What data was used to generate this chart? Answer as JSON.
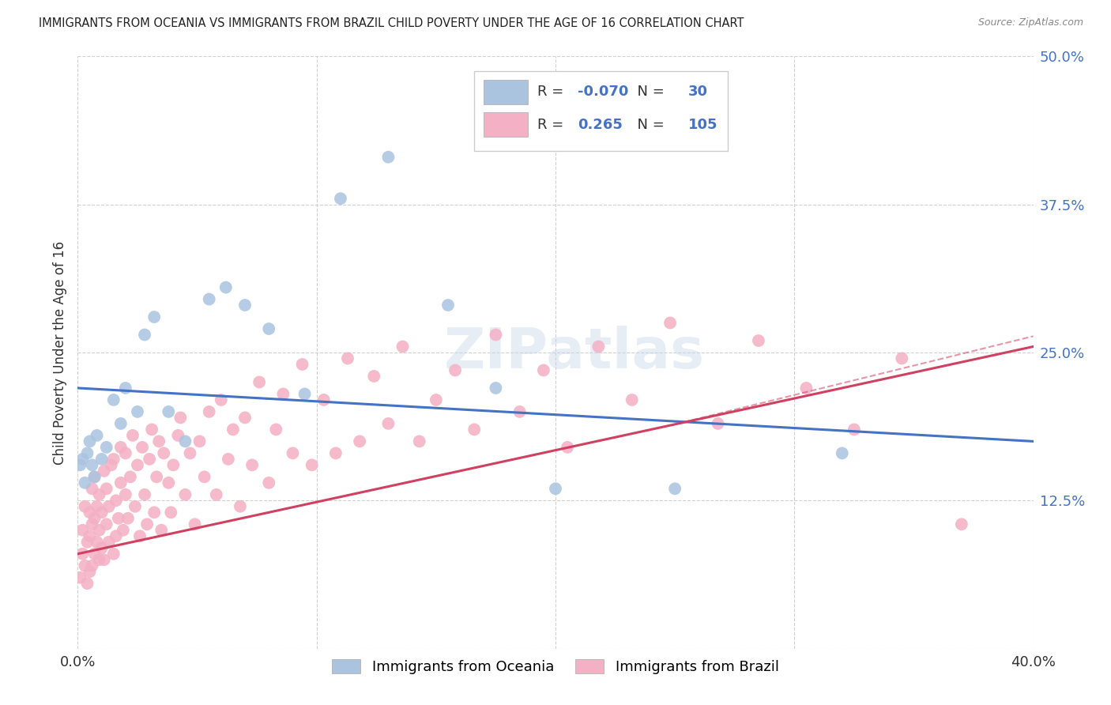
{
  "title": "IMMIGRANTS FROM OCEANIA VS IMMIGRANTS FROM BRAZIL CHILD POVERTY UNDER THE AGE OF 16 CORRELATION CHART",
  "source": "Source: ZipAtlas.com",
  "ylabel": "Child Poverty Under the Age of 16",
  "xmin": 0.0,
  "xmax": 0.4,
  "ymin": 0.0,
  "ymax": 0.5,
  "yticks": [
    0.125,
    0.25,
    0.375,
    0.5
  ],
  "ytick_labels": [
    "12.5%",
    "25.0%",
    "37.5%",
    "50.0%"
  ],
  "xtick_positions": [
    0.0,
    0.1,
    0.2,
    0.3,
    0.4
  ],
  "oceania_color": "#aac4e0",
  "brazil_color": "#f4b0c4",
  "oceania_R": -0.07,
  "oceania_N": 30,
  "brazil_R": 0.265,
  "brazil_N": 105,
  "trend_oceania_color": "#4472c4",
  "trend_brazil_color": "#d04060",
  "watermark": "ZIPatlas",
  "oceania_x": [
    0.001,
    0.002,
    0.003,
    0.004,
    0.005,
    0.006,
    0.007,
    0.008,
    0.01,
    0.012,
    0.015,
    0.018,
    0.02,
    0.025,
    0.028,
    0.032,
    0.038,
    0.045,
    0.055,
    0.062,
    0.07,
    0.08,
    0.095,
    0.11,
    0.13,
    0.155,
    0.175,
    0.2,
    0.25,
    0.32
  ],
  "oceania_y": [
    0.155,
    0.16,
    0.14,
    0.165,
    0.175,
    0.155,
    0.145,
    0.18,
    0.16,
    0.17,
    0.21,
    0.19,
    0.22,
    0.2,
    0.265,
    0.28,
    0.2,
    0.175,
    0.295,
    0.305,
    0.29,
    0.27,
    0.215,
    0.38,
    0.415,
    0.29,
    0.22,
    0.135,
    0.135,
    0.165
  ],
  "brazil_x": [
    0.001,
    0.002,
    0.002,
    0.003,
    0.003,
    0.004,
    0.004,
    0.005,
    0.005,
    0.005,
    0.006,
    0.006,
    0.006,
    0.007,
    0.007,
    0.007,
    0.008,
    0.008,
    0.009,
    0.009,
    0.009,
    0.01,
    0.01,
    0.011,
    0.011,
    0.012,
    0.012,
    0.013,
    0.013,
    0.014,
    0.015,
    0.015,
    0.016,
    0.016,
    0.017,
    0.018,
    0.018,
    0.019,
    0.02,
    0.02,
    0.021,
    0.022,
    0.023,
    0.024,
    0.025,
    0.026,
    0.027,
    0.028,
    0.029,
    0.03,
    0.031,
    0.032,
    0.033,
    0.034,
    0.035,
    0.036,
    0.038,
    0.039,
    0.04,
    0.042,
    0.043,
    0.045,
    0.047,
    0.049,
    0.051,
    0.053,
    0.055,
    0.058,
    0.06,
    0.063,
    0.065,
    0.068,
    0.07,
    0.073,
    0.076,
    0.08,
    0.083,
    0.086,
    0.09,
    0.094,
    0.098,
    0.103,
    0.108,
    0.113,
    0.118,
    0.124,
    0.13,
    0.136,
    0.143,
    0.15,
    0.158,
    0.166,
    0.175,
    0.185,
    0.195,
    0.205,
    0.218,
    0.232,
    0.248,
    0.268,
    0.285,
    0.305,
    0.325,
    0.345,
    0.37
  ],
  "brazil_y": [
    0.06,
    0.08,
    0.1,
    0.07,
    0.12,
    0.055,
    0.09,
    0.065,
    0.095,
    0.115,
    0.07,
    0.105,
    0.135,
    0.08,
    0.11,
    0.145,
    0.09,
    0.12,
    0.075,
    0.1,
    0.13,
    0.085,
    0.115,
    0.15,
    0.075,
    0.105,
    0.135,
    0.09,
    0.12,
    0.155,
    0.08,
    0.16,
    0.095,
    0.125,
    0.11,
    0.14,
    0.17,
    0.1,
    0.13,
    0.165,
    0.11,
    0.145,
    0.18,
    0.12,
    0.155,
    0.095,
    0.17,
    0.13,
    0.105,
    0.16,
    0.185,
    0.115,
    0.145,
    0.175,
    0.1,
    0.165,
    0.14,
    0.115,
    0.155,
    0.18,
    0.195,
    0.13,
    0.165,
    0.105,
    0.175,
    0.145,
    0.2,
    0.13,
    0.21,
    0.16,
    0.185,
    0.12,
    0.195,
    0.155,
    0.225,
    0.14,
    0.185,
    0.215,
    0.165,
    0.24,
    0.155,
    0.21,
    0.165,
    0.245,
    0.175,
    0.23,
    0.19,
    0.255,
    0.175,
    0.21,
    0.235,
    0.185,
    0.265,
    0.2,
    0.235,
    0.17,
    0.255,
    0.21,
    0.275,
    0.19,
    0.26,
    0.22,
    0.185,
    0.245,
    0.105
  ]
}
